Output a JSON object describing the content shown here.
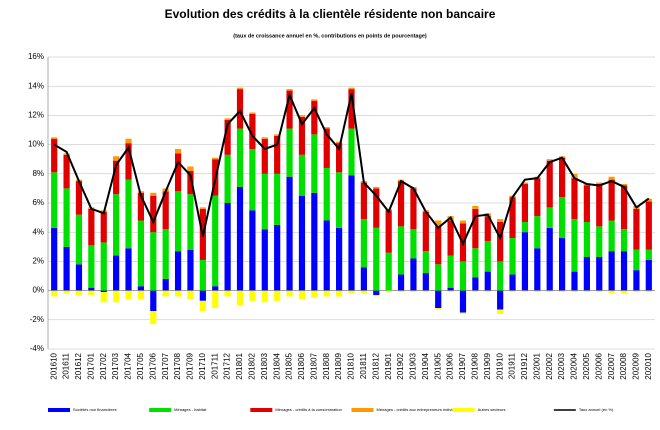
{
  "chart_data": {
    "type": "bar",
    "stacked": true,
    "title": "Evolution des crédits à la clientèle résidente non bancaire",
    "subtitle": "(taux de croissance annuel en %, contributions en points de pourcentage)",
    "categories": [
      "201610",
      "201611",
      "201612",
      "201701",
      "201702",
      "201703",
      "201704",
      "201705",
      "201706",
      "201707",
      "201708",
      "201709",
      "201710",
      "201711",
      "201712",
      "201801",
      "201802",
      "201803",
      "201804",
      "201805",
      "201806",
      "201807",
      "201808",
      "201809",
      "201810",
      "201811",
      "201812",
      "201901",
      "201902",
      "201903",
      "201904",
      "201905",
      "201906",
      "201907",
      "201908",
      "201909",
      "201910",
      "201911",
      "201912",
      "202001",
      "202002",
      "202003",
      "202004",
      "202005",
      "202006",
      "202007",
      "202008",
      "202009",
      "202010"
    ],
    "series": [
      {
        "name": "Sociétés non financières",
        "color": "#0000ff",
        "values": [
          4.3,
          3.0,
          1.8,
          0.2,
          -0.1,
          2.4,
          2.9,
          0.3,
          -1.4,
          0.8,
          2.7,
          2.8,
          -0.7,
          0.3,
          6.0,
          7.1,
          5.5,
          4.2,
          4.5,
          7.8,
          6.5,
          6.7,
          4.8,
          4.3,
          7.9,
          1.6,
          -0.3,
          0.0,
          1.1,
          2.2,
          1.2,
          -1.2,
          0.2,
          -1.5,
          0.9,
          1.3,
          -1.3,
          1.1,
          4.0,
          2.9,
          4.3,
          3.6,
          1.3,
          2.3,
          2.3,
          2.7,
          2.7,
          1.4,
          2.1
        ]
      },
      {
        "name": "Ménages - habitat",
        "color": "#00e000",
        "values": [
          3.8,
          4.0,
          3.4,
          2.9,
          3.3,
          4.2,
          4.7,
          4.5,
          4.0,
          3.4,
          4.1,
          3.8,
          2.1,
          6.2,
          3.3,
          4.0,
          4.2,
          3.8,
          3.5,
          3.3,
          2.8,
          4.0,
          3.6,
          3.8,
          3.2,
          3.3,
          4.3,
          2.6,
          3.3,
          2.0,
          1.5,
          1.8,
          2.2,
          2.0,
          2.0,
          2.1,
          2.0,
          2.5,
          0.7,
          2.2,
          1.4,
          2.8,
          3.6,
          2.4,
          2.1,
          2.1,
          1.5,
          1.4,
          0.7
        ]
      },
      {
        "name": "Ménages - crédits à la consommation",
        "color": "#e00000",
        "values": [
          2.3,
          2.3,
          2.3,
          2.5,
          2.1,
          2.3,
          2.5,
          1.9,
          2.5,
          2.6,
          2.6,
          1.6,
          3.5,
          2.5,
          2.4,
          2.7,
          2.4,
          2.4,
          2.6,
          2.6,
          2.6,
          2.3,
          2.7,
          2.0,
          2.7,
          2.5,
          2.7,
          2.9,
          3.1,
          2.8,
          2.7,
          2.6,
          2.4,
          2.6,
          2.7,
          1.7,
          2.7,
          2.8,
          2.6,
          2.6,
          3.2,
          2.7,
          2.8,
          2.5,
          2.9,
          2.8,
          3.0,
          2.8,
          3.3
        ]
      },
      {
        "name": "Ménages - crédits aux entrepreneurs individuels",
        "color": "#ff9900",
        "values": [
          0.1,
          0.1,
          0.1,
          0.1,
          0.1,
          0.3,
          0.3,
          0.1,
          0.2,
          0.2,
          0.3,
          0.3,
          0.1,
          0.1,
          0.1,
          0.1,
          0.1,
          0.1,
          0.1,
          0.1,
          0.1,
          0.1,
          0.1,
          0.1,
          0.1,
          0.1,
          0.1,
          0.1,
          0.1,
          0.1,
          0.1,
          0.4,
          0.3,
          0.2,
          0.2,
          0.2,
          0.2,
          0.1,
          0.1,
          0.1,
          0.1,
          0.1,
          0.3,
          0.1,
          0.1,
          0.2,
          0.1,
          0.2,
          0.2
        ]
      },
      {
        "name": "Autres secteurs",
        "color": "#ffff00",
        "values": [
          -0.4,
          -0.2,
          -0.3,
          -0.3,
          -0.7,
          -0.8,
          -0.6,
          -0.6,
          -0.9,
          -0.4,
          -0.4,
          -0.6,
          -0.7,
          -1.2,
          -0.4,
          -1.0,
          -0.7,
          -0.8,
          -0.7,
          -0.4,
          -0.6,
          -0.5,
          -0.4,
          -0.4,
          -0.2,
          -0.2,
          -0.1,
          -0.1,
          -0.1,
          -0.1,
          -0.1,
          -0.1,
          -0.1,
          -0.1,
          -0.1,
          -0.1,
          -0.3,
          -0.1,
          -0.1,
          -0.1,
          -0.1,
          -0.1,
          -0.1,
          -0.1,
          -0.1,
          -0.2,
          -0.2,
          -0.1,
          -0.1
        ]
      },
      {
        "name": "Taux annuel (en %)",
        "color": "#000000",
        "type": "line",
        "values": [
          10.0,
          9.5,
          7.5,
          5.6,
          5.3,
          8.6,
          9.8,
          6.5,
          4.7,
          6.8,
          8.8,
          7.9,
          3.7,
          7.6,
          11.4,
          12.3,
          10.6,
          9.7,
          10.0,
          13.4,
          11.4,
          12.5,
          10.7,
          9.7,
          13.5,
          7.4,
          6.5,
          5.4,
          7.5,
          7.0,
          5.4,
          4.3,
          5.0,
          3.2,
          5.1,
          5.2,
          3.6,
          6.4,
          7.6,
          7.7,
          8.8,
          9.1,
          7.7,
          7.3,
          7.2,
          7.5,
          7.1,
          5.7,
          6.3
        ]
      }
    ],
    "ylim": [
      -4,
      16
    ],
    "yticks": [
      {
        "value": -4,
        "label": "-4%"
      },
      {
        "value": -2,
        "label": "-2%"
      },
      {
        "value": 0,
        "label": "0%"
      },
      {
        "value": 2,
        "label": "2%"
      },
      {
        "value": 4,
        "label": "4%"
      },
      {
        "value": 6,
        "label": "6%"
      },
      {
        "value": 8,
        "label": "8%"
      },
      {
        "value": 10,
        "label": "10%"
      },
      {
        "value": 12,
        "label": "12%"
      },
      {
        "value": 14,
        "label": "14%"
      },
      {
        "value": 16,
        "label": "16%"
      }
    ],
    "grid": true,
    "legend": "bottom"
  }
}
